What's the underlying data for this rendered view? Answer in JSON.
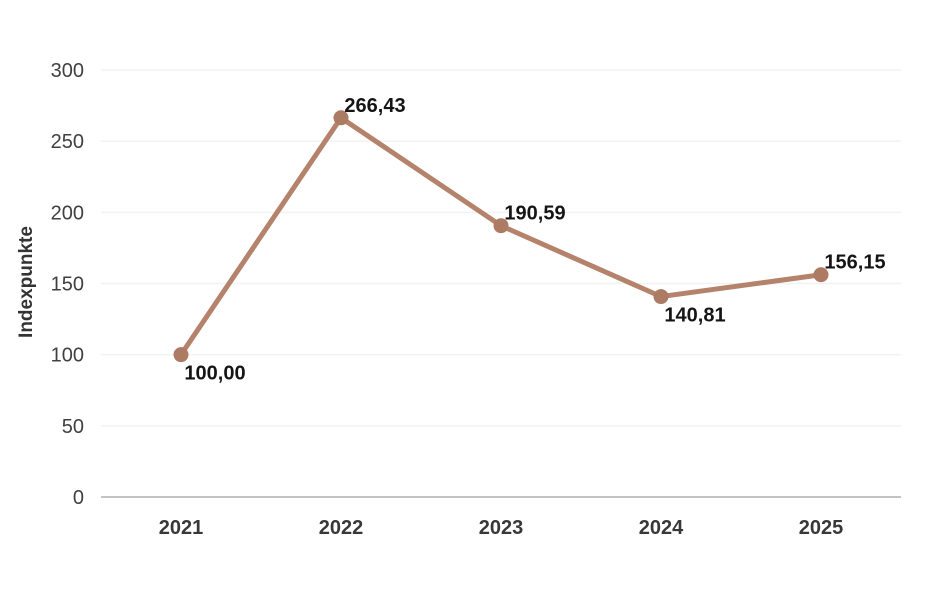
{
  "chart": {
    "y_axis_title": "Indexpunkte"
  },
  "colors": {
    "background": "#ffffff",
    "line": "#b5836c",
    "marker": "#ad7a63",
    "gridline": "#f2f2f2",
    "axis_line": "#c3c3c3",
    "y_tick_label": "#404040",
    "x_tick_label": "#383838",
    "data_label": "#151515"
  },
  "chart_data": {
    "type": "line",
    "title": "",
    "xlabel": "",
    "ylabel": "Indexpunkte",
    "categories": [
      "2021",
      "2022",
      "2023",
      "2024",
      "2025"
    ],
    "values": [
      100.0,
      266.43,
      190.59,
      140.81,
      156.15
    ],
    "value_labels": [
      "100,00",
      "266,43",
      "190,59",
      "140,81",
      "156,15"
    ],
    "label_positions": [
      "below-right",
      "above-right",
      "above-right",
      "below-right",
      "above-right"
    ],
    "ylim": [
      0,
      300
    ],
    "yticks": [
      0,
      50,
      100,
      150,
      200,
      250,
      300
    ],
    "grid": true,
    "legend": "none"
  }
}
